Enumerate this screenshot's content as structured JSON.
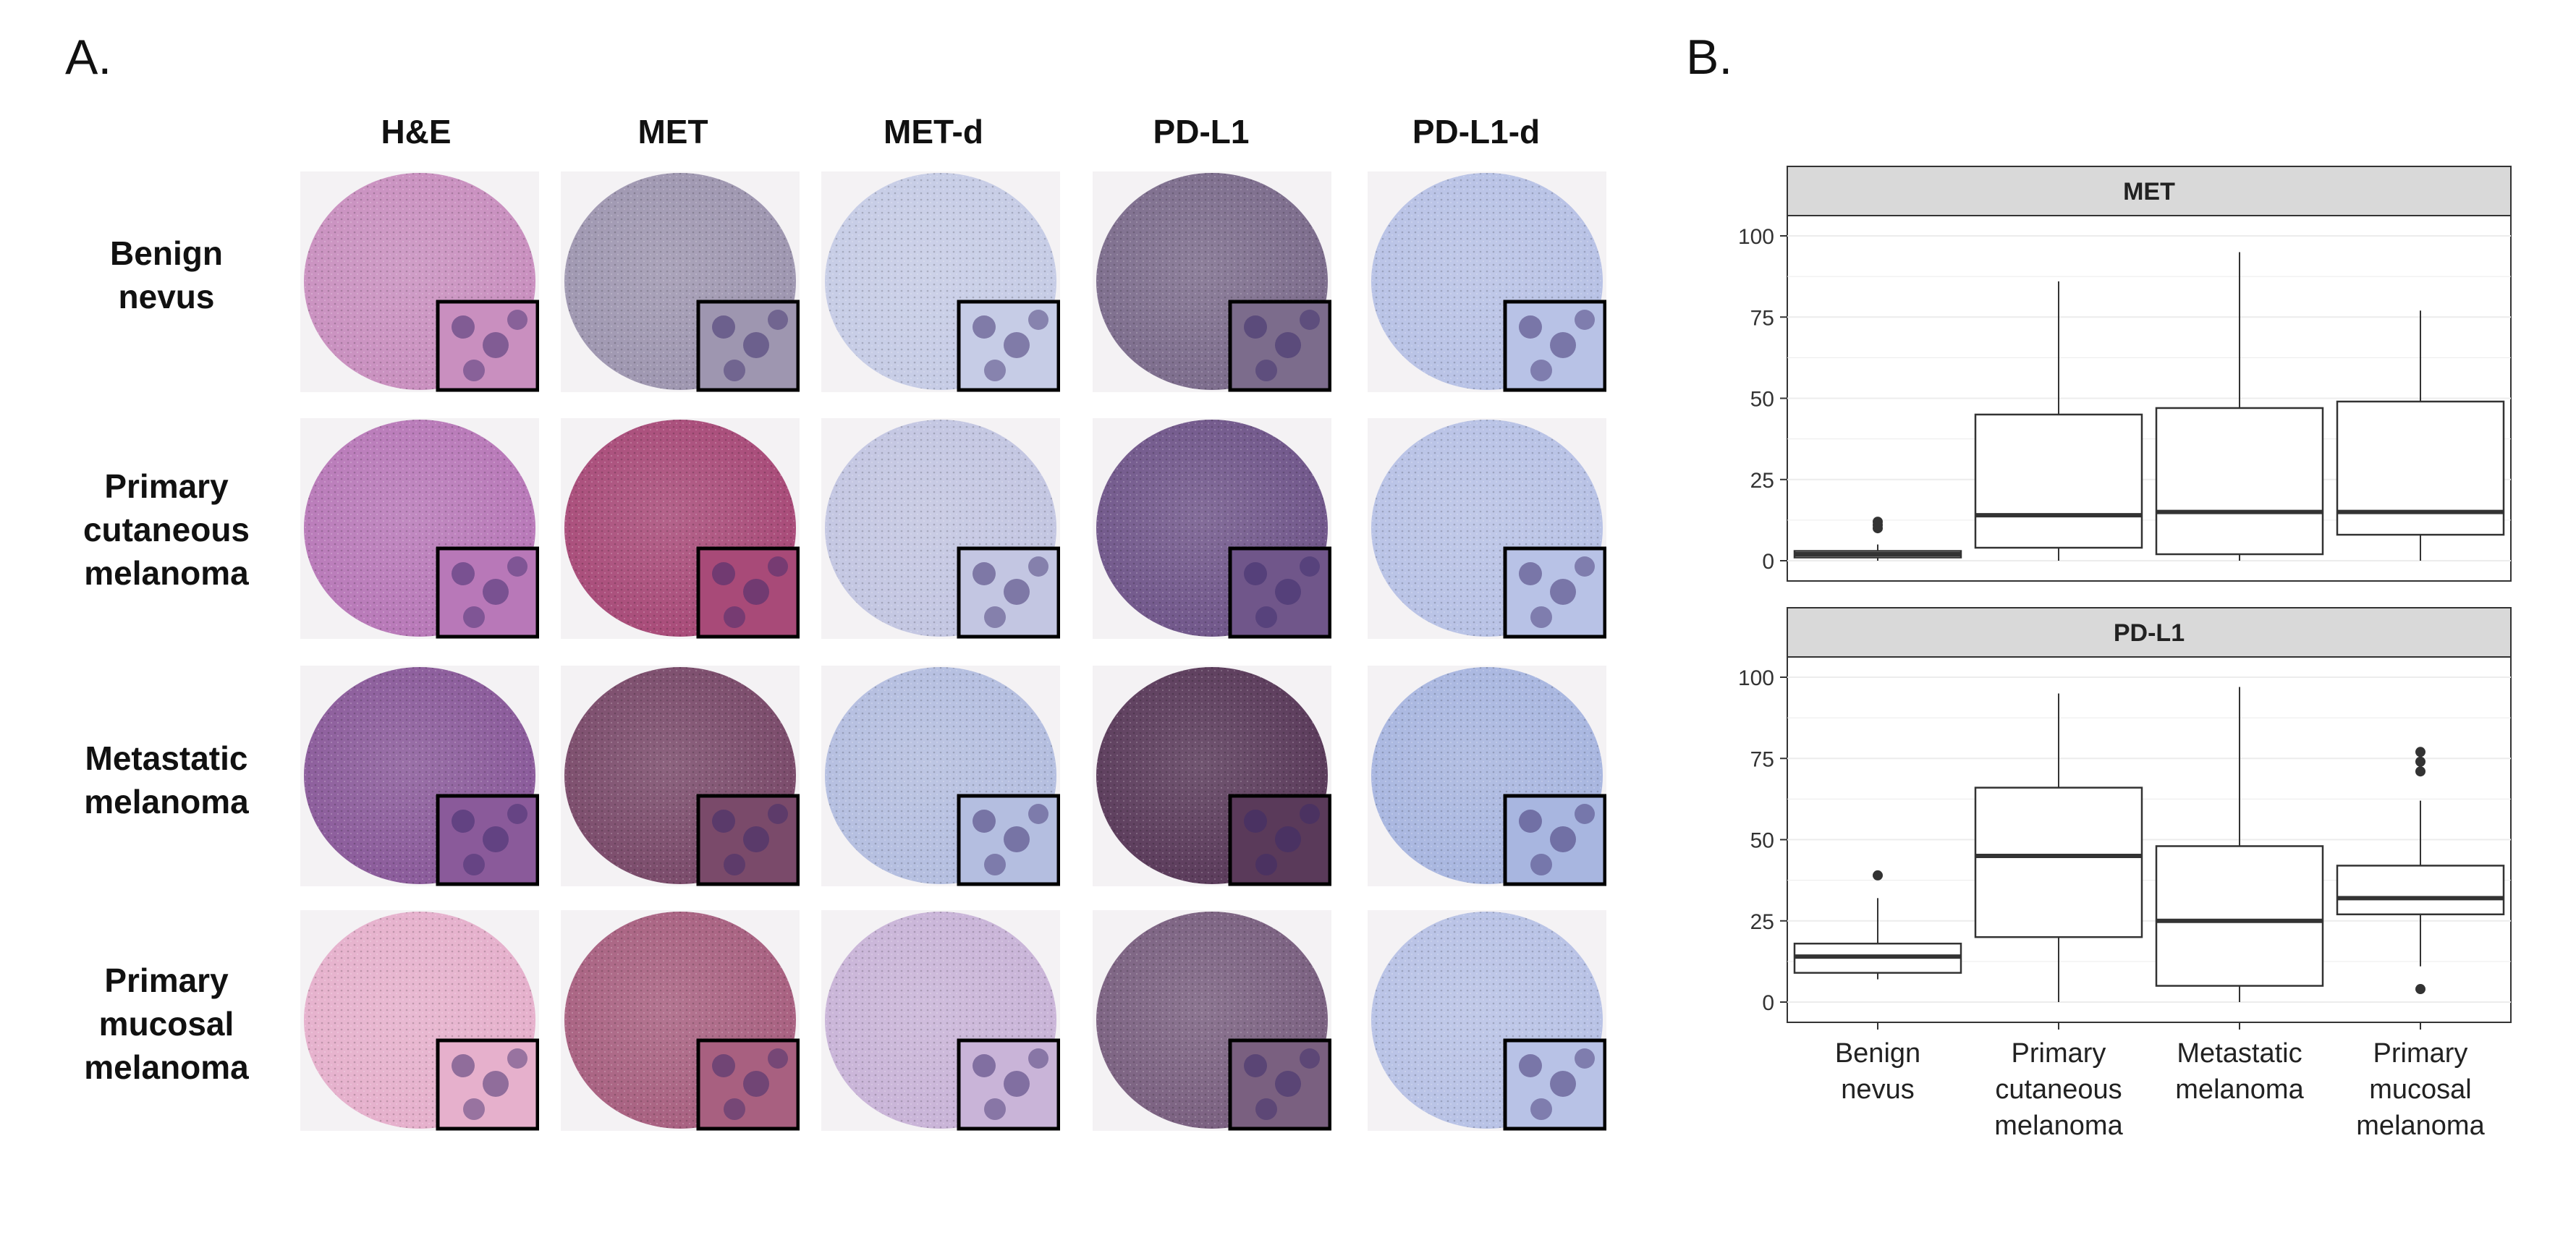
{
  "figure": {
    "panel_a_label": "A.",
    "panel_b_label": "B."
  },
  "grid": {
    "columns": [
      "H&E",
      "MET",
      "MET-d",
      "PD-L1",
      "PD-L1-d"
    ],
    "rows": [
      {
        "lines": [
          "Benign",
          "nevus"
        ]
      },
      {
        "lines": [
          "Primary",
          "cutaneous",
          "melanoma"
        ]
      },
      {
        "lines": [
          "Metastatic",
          "melanoma"
        ]
      },
      {
        "lines": [
          "Primary",
          "mucosal",
          "melanoma"
        ]
      }
    ],
    "stain_colors": {
      "H&E": [
        "#c98fbf",
        "#b878b8",
        "#8a5a9a",
        "#e6b0cc",
        "#d0648a"
      ],
      "MET": [
        "#9e96b0",
        "#a84a78",
        "#7a4a6a",
        "#a86080",
        "#b06080"
      ],
      "MET-d": [
        "#c6cce6",
        "#c3c6e2",
        "#b4bee0",
        "#c9b4d8",
        "#c8b0d0"
      ],
      "PD-L1": [
        "#7c6c8c",
        "#70568a",
        "#5a3a5a",
        "#7a6080",
        "#8a7896"
      ],
      "PD-L1-d": [
        "#b8c2e6",
        "#b8c2e6",
        "#a8b6e0",
        "#b8c2e6",
        "#b8c2e6"
      ]
    }
  },
  "chart_data": {
    "type": "boxplot",
    "categories": [
      [
        "Benign",
        "nevus"
      ],
      [
        "Primary",
        "cutaneous",
        "melanoma"
      ],
      [
        "Metastatic",
        "melanoma"
      ],
      [
        "Primary",
        "mucosal",
        "melanoma"
      ]
    ],
    "ylim": [
      0,
      100
    ],
    "yticks": [
      0,
      25,
      50,
      75,
      100
    ],
    "facets": [
      {
        "title": "MET",
        "boxes": [
          {
            "q1": 1,
            "median": 2,
            "q3": 3,
            "whisker_low": 0,
            "whisker_high": 5,
            "outliers": [
              10,
              11,
              12
            ]
          },
          {
            "q1": 4,
            "median": 14,
            "q3": 45,
            "whisker_low": 0,
            "whisker_high": 86,
            "outliers": []
          },
          {
            "q1": 2,
            "median": 15,
            "q3": 47,
            "whisker_low": 0,
            "whisker_high": 95,
            "outliers": []
          },
          {
            "q1": 8,
            "median": 15,
            "q3": 49,
            "whisker_low": 0,
            "whisker_high": 77,
            "outliers": []
          }
        ]
      },
      {
        "title": "PD-L1",
        "boxes": [
          {
            "q1": 9,
            "median": 14,
            "q3": 18,
            "whisker_low": 7,
            "whisker_high": 32,
            "outliers": [
              39
            ]
          },
          {
            "q1": 20,
            "median": 45,
            "q3": 66,
            "whisker_low": 0,
            "whisker_high": 95,
            "outliers": []
          },
          {
            "q1": 5,
            "median": 25,
            "q3": 48,
            "whisker_low": 0,
            "whisker_high": 97,
            "outliers": []
          },
          {
            "q1": 27,
            "median": 32,
            "q3": 42,
            "whisker_low": 11,
            "whisker_high": 62,
            "outliers": [
              71,
              74,
              77,
              4
            ]
          }
        ]
      }
    ]
  }
}
